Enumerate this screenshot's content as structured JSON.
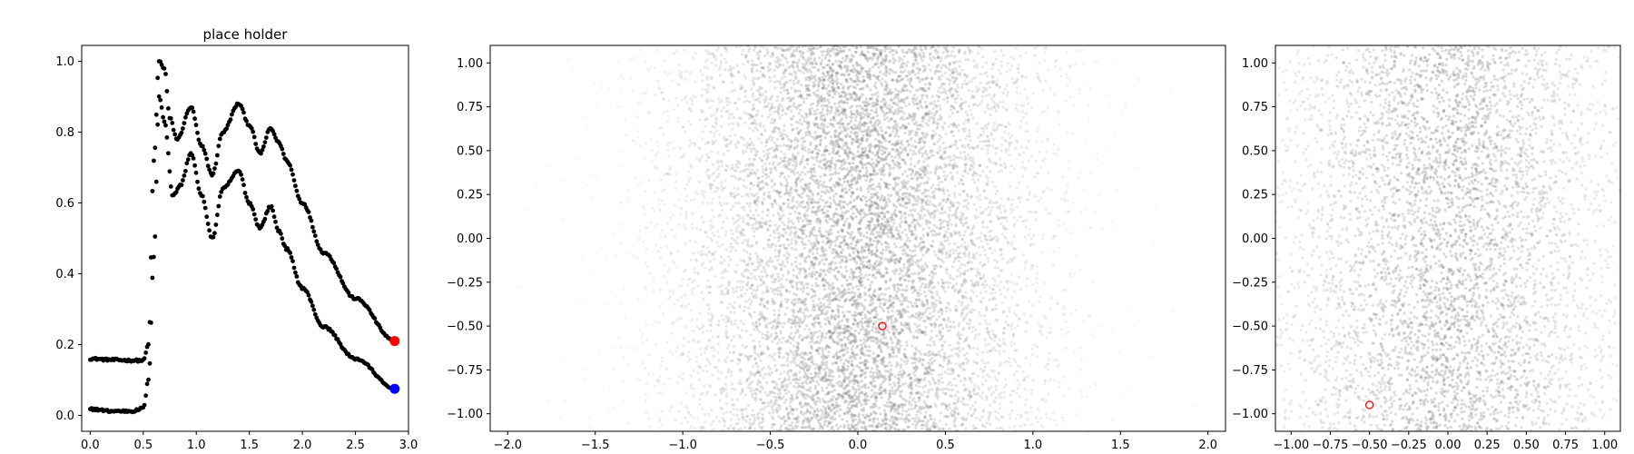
{
  "colors": {
    "markers": "#000000",
    "end_marker_top": "#ff0000",
    "end_marker_bottom": "#0000ff",
    "cloud": "#808080",
    "highlight": "#ff0000"
  },
  "chart_data": [
    {
      "type": "scatter",
      "title": "place holder",
      "xlim": [
        -0.08,
        3.0
      ],
      "ylim": [
        -0.045,
        1.045
      ],
      "xticks": [
        0.0,
        0.5,
        1.0,
        1.5,
        2.0,
        2.5,
        3.0
      ],
      "xtick_labels": [
        "0.0",
        "0.5",
        "1.0",
        "1.5",
        "2.0",
        "2.5",
        "3.0"
      ],
      "yticks": [
        0.0,
        0.2,
        0.4,
        0.6,
        0.8,
        1.0
      ],
      "ytick_labels": [
        "0.0",
        "0.2",
        "0.4",
        "0.6",
        "0.8",
        "1.0"
      ],
      "series": [
        {
          "knots_x": [
            0.0,
            0.2,
            0.4,
            0.5,
            0.55,
            0.6,
            0.65,
            0.7,
            0.75,
            0.82,
            0.95,
            1.05,
            1.15,
            1.25,
            1.4,
            1.5,
            1.6,
            1.7,
            1.78,
            1.85,
            2.0,
            2.2,
            2.5,
            2.87
          ],
          "knots_y": [
            0.16,
            0.157,
            0.155,
            0.155,
            0.2,
            0.72,
            1.0,
            0.98,
            0.84,
            0.78,
            0.87,
            0.76,
            0.68,
            0.8,
            0.88,
            0.82,
            0.74,
            0.81,
            0.77,
            0.72,
            0.6,
            0.46,
            0.33,
            0.21
          ],
          "end_value": [
            2.87,
            0.21
          ],
          "end_color": "#ff0000"
        },
        {
          "knots_x": [
            0.0,
            0.2,
            0.4,
            0.5,
            0.55,
            0.6,
            0.65,
            0.7,
            0.78,
            0.85,
            0.95,
            1.05,
            1.15,
            1.25,
            1.4,
            1.5,
            1.6,
            1.7,
            1.78,
            1.85,
            2.0,
            2.2,
            2.5,
            2.87
          ],
          "knots_y": [
            0.018,
            0.012,
            0.012,
            0.02,
            0.1,
            0.45,
            0.9,
            0.83,
            0.62,
            0.65,
            0.74,
            0.62,
            0.5,
            0.64,
            0.69,
            0.6,
            0.53,
            0.59,
            0.52,
            0.47,
            0.36,
            0.25,
            0.16,
            0.075
          ],
          "end_value": [
            2.87,
            0.075
          ],
          "end_color": "#0000ff"
        }
      ]
    },
    {
      "type": "scatter",
      "xlim": [
        -2.1,
        2.1
      ],
      "ylim": [
        -1.1,
        1.1
      ],
      "xticks": [
        -2.0,
        -1.5,
        -1.0,
        -0.5,
        0.0,
        0.5,
        1.0,
        1.5,
        2.0
      ],
      "xtick_labels": [
        "−2.0",
        "−1.5",
        "−1.0",
        "−0.5",
        "0.0",
        "0.5",
        "1.0",
        "1.5",
        "2.0"
      ],
      "yticks": [
        -1.0,
        -0.75,
        -0.5,
        -0.25,
        0.0,
        0.25,
        0.5,
        0.75,
        1.0
      ],
      "ytick_labels": [
        "−1.00",
        "−0.75",
        "−0.50",
        "−0.25",
        "0.00",
        "0.25",
        "0.50",
        "0.75",
        "1.00"
      ],
      "cloud": {
        "center_x": 0.0,
        "spread_x": 0.55,
        "range_y": [
          -1.1,
          1.1
        ]
      },
      "highlight_point": [
        0.14,
        -0.5
      ]
    },
    {
      "type": "scatter",
      "xlim": [
        -1.1,
        1.1
      ],
      "ylim": [
        -1.1,
        1.1
      ],
      "xticks": [
        -1.0,
        -0.75,
        -0.5,
        -0.25,
        0.0,
        0.25,
        0.5,
        0.75,
        1.0
      ],
      "xtick_labels": [
        "−1.00",
        "−0.75",
        "−0.50",
        "−0.25",
        "0.00",
        "0.25",
        "0.50",
        "0.75",
        "1.00"
      ],
      "yticks": [
        -1.0,
        -0.75,
        -0.5,
        -0.25,
        0.0,
        0.25,
        0.5,
        0.75,
        1.0
      ],
      "ytick_labels": [
        "−1.00",
        "−0.75",
        "−0.50",
        "−0.25",
        "0.00",
        "0.25",
        "0.50",
        "0.75",
        "1.00"
      ],
      "cloud": {
        "center_x": 0.0,
        "spread_x": 0.6,
        "range_y": [
          -1.1,
          1.1
        ]
      },
      "highlight_point": [
        -0.5,
        -0.95
      ]
    }
  ]
}
